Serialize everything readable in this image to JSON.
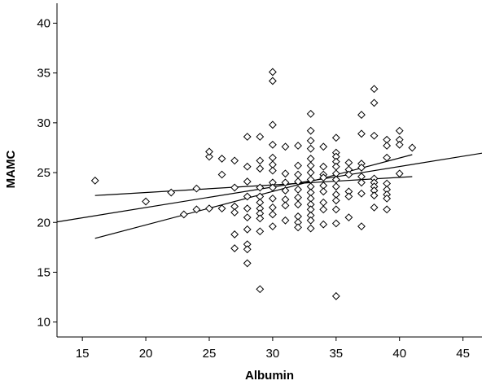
{
  "chart_data": {
    "type": "scatter",
    "title": "",
    "xlabel": "Albumin",
    "ylabel": "MAMC",
    "xlim": [
      13,
      46.5
    ],
    "ylim": [
      8.5,
      42
    ],
    "xticks": [
      15,
      20,
      25,
      30,
      35,
      40,
      45
    ],
    "yticks": [
      10,
      15,
      20,
      25,
      30,
      35,
      40
    ],
    "grid": false,
    "legend": "none",
    "marker": "diamond",
    "colors": {
      "background": "#ffffff",
      "marker_stroke": "#000000",
      "line": "#000000"
    },
    "points": [
      [
        16,
        24.2
      ],
      [
        20,
        22.1
      ],
      [
        22,
        23.0
      ],
      [
        23,
        20.8
      ],
      [
        24,
        21.3
      ],
      [
        24,
        23.4
      ],
      [
        25,
        26.6
      ],
      [
        25,
        27.1
      ],
      [
        25,
        21.4
      ],
      [
        26,
        26.4
      ],
      [
        26,
        24.8
      ],
      [
        26,
        21.4
      ],
      [
        27,
        26.2
      ],
      [
        27,
        23.5
      ],
      [
        27,
        21.6
      ],
      [
        27,
        21.0
      ],
      [
        27,
        18.8
      ],
      [
        27,
        17.4
      ],
      [
        28,
        28.6
      ],
      [
        28,
        25.6
      ],
      [
        28,
        24.1
      ],
      [
        28,
        22.6
      ],
      [
        28,
        21.4
      ],
      [
        28,
        20.5
      ],
      [
        28,
        19.3
      ],
      [
        28,
        17.8
      ],
      [
        28,
        17.3
      ],
      [
        28,
        15.9
      ],
      [
        29,
        28.6
      ],
      [
        29,
        26.2
      ],
      [
        29,
        25.4
      ],
      [
        29,
        23.5
      ],
      [
        29,
        22.6
      ],
      [
        29,
        22.0
      ],
      [
        29,
        21.4
      ],
      [
        29,
        20.9
      ],
      [
        29,
        20.4
      ],
      [
        29,
        19.1
      ],
      [
        29,
        13.3
      ],
      [
        30,
        35.1
      ],
      [
        30,
        34.2
      ],
      [
        30,
        29.8
      ],
      [
        30,
        27.8
      ],
      [
        30,
        26.5
      ],
      [
        30,
        25.8
      ],
      [
        30,
        25.2
      ],
      [
        30,
        24.0
      ],
      [
        30,
        23.5
      ],
      [
        30,
        22.4
      ],
      [
        30,
        21.5
      ],
      [
        30,
        20.8
      ],
      [
        30,
        19.6
      ],
      [
        31,
        27.6
      ],
      [
        31,
        24.9
      ],
      [
        31,
        24.0
      ],
      [
        31,
        23.2
      ],
      [
        31,
        22.3
      ],
      [
        31,
        21.7
      ],
      [
        31,
        20.2
      ],
      [
        32,
        27.7
      ],
      [
        32,
        25.7
      ],
      [
        32,
        24.8
      ],
      [
        32,
        24.1
      ],
      [
        32,
        23.3
      ],
      [
        32,
        22.5
      ],
      [
        32,
        21.8
      ],
      [
        32,
        20.6
      ],
      [
        32,
        20.0
      ],
      [
        32,
        19.5
      ],
      [
        33,
        30.9
      ],
      [
        33,
        29.2
      ],
      [
        33,
        28.2
      ],
      [
        33,
        27.4
      ],
      [
        33,
        26.4
      ],
      [
        33,
        25.7
      ],
      [
        33,
        25.0
      ],
      [
        33,
        24.3
      ],
      [
        33,
        23.6
      ],
      [
        33,
        23.0
      ],
      [
        33,
        22.4
      ],
      [
        33,
        21.8
      ],
      [
        33,
        21.3
      ],
      [
        33,
        20.7
      ],
      [
        33,
        20.2
      ],
      [
        33,
        19.4
      ],
      [
        34,
        27.6
      ],
      [
        34,
        25.6
      ],
      [
        34,
        24.8
      ],
      [
        34,
        24.5
      ],
      [
        34,
        23.7
      ],
      [
        34,
        23.1
      ],
      [
        34,
        22.0
      ],
      [
        34,
        21.3
      ],
      [
        34,
        19.8
      ],
      [
        35,
        28.5
      ],
      [
        35,
        27.0
      ],
      [
        35,
        26.6
      ],
      [
        35,
        26.1
      ],
      [
        35,
        25.6
      ],
      [
        35,
        24.9
      ],
      [
        35,
        24.3
      ],
      [
        35,
        23.6
      ],
      [
        35,
        22.8
      ],
      [
        35,
        22.2
      ],
      [
        35,
        21.3
      ],
      [
        35,
        19.9
      ],
      [
        35,
        12.6
      ],
      [
        36,
        26.0
      ],
      [
        36,
        25.3
      ],
      [
        36,
        24.8
      ],
      [
        36,
        23.1
      ],
      [
        36,
        22.6
      ],
      [
        36,
        20.5
      ],
      [
        37,
        30.8
      ],
      [
        37,
        28.9
      ],
      [
        37,
        25.9
      ],
      [
        37,
        25.5
      ],
      [
        37,
        24.6
      ],
      [
        37,
        24.0
      ],
      [
        37,
        22.9
      ],
      [
        37,
        19.6
      ],
      [
        38,
        33.4
      ],
      [
        38,
        32.0
      ],
      [
        38,
        28.7
      ],
      [
        38,
        24.4
      ],
      [
        38,
        24.0
      ],
      [
        38,
        23.6
      ],
      [
        38,
        23.2
      ],
      [
        38,
        22.7
      ],
      [
        38,
        21.5
      ],
      [
        39,
        28.3
      ],
      [
        39,
        27.7
      ],
      [
        39,
        26.5
      ],
      [
        39,
        23.9
      ],
      [
        39,
        23.3
      ],
      [
        39,
        22.8
      ],
      [
        39,
        22.4
      ],
      [
        39,
        21.3
      ],
      [
        40,
        29.2
      ],
      [
        40,
        28.3
      ],
      [
        40,
        27.8
      ],
      [
        40,
        24.9
      ],
      [
        41,
        27.5
      ]
    ],
    "lines": [
      {
        "x": [
          13,
          46.5
        ],
        "y": [
          20.05,
          26.95
        ]
      },
      {
        "x": [
          16,
          41
        ],
        "y": [
          18.4,
          26.8
        ]
      },
      {
        "x": [
          16,
          41
        ],
        "y": [
          22.7,
          24.6
        ]
      }
    ]
  }
}
